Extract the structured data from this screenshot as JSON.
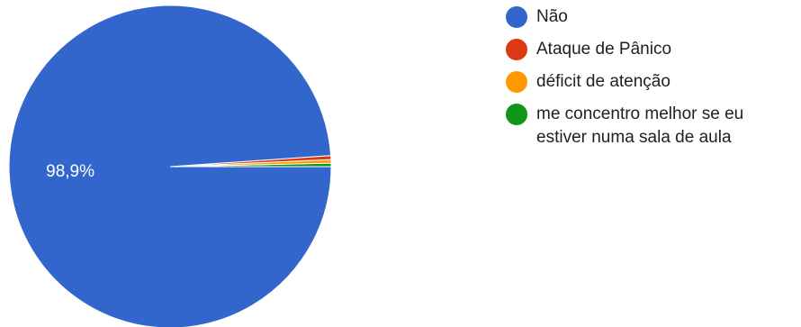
{
  "chart_data": {
    "type": "pie",
    "categories": [
      "Não",
      "Ataque de Pânico",
      "déficit de atenção",
      "me concentro melhor se eu estiver numa sala de aula"
    ],
    "values": [
      98.9,
      0.4,
      0.35,
      0.35
    ],
    "colors": [
      "#3366cc",
      "#dc3912",
      "#ff9900",
      "#109618"
    ],
    "data_labels": [
      "98,9%",
      "",
      "",
      ""
    ],
    "legend_position": "right",
    "start_angle": "clockwise from 3 o'clock"
  }
}
